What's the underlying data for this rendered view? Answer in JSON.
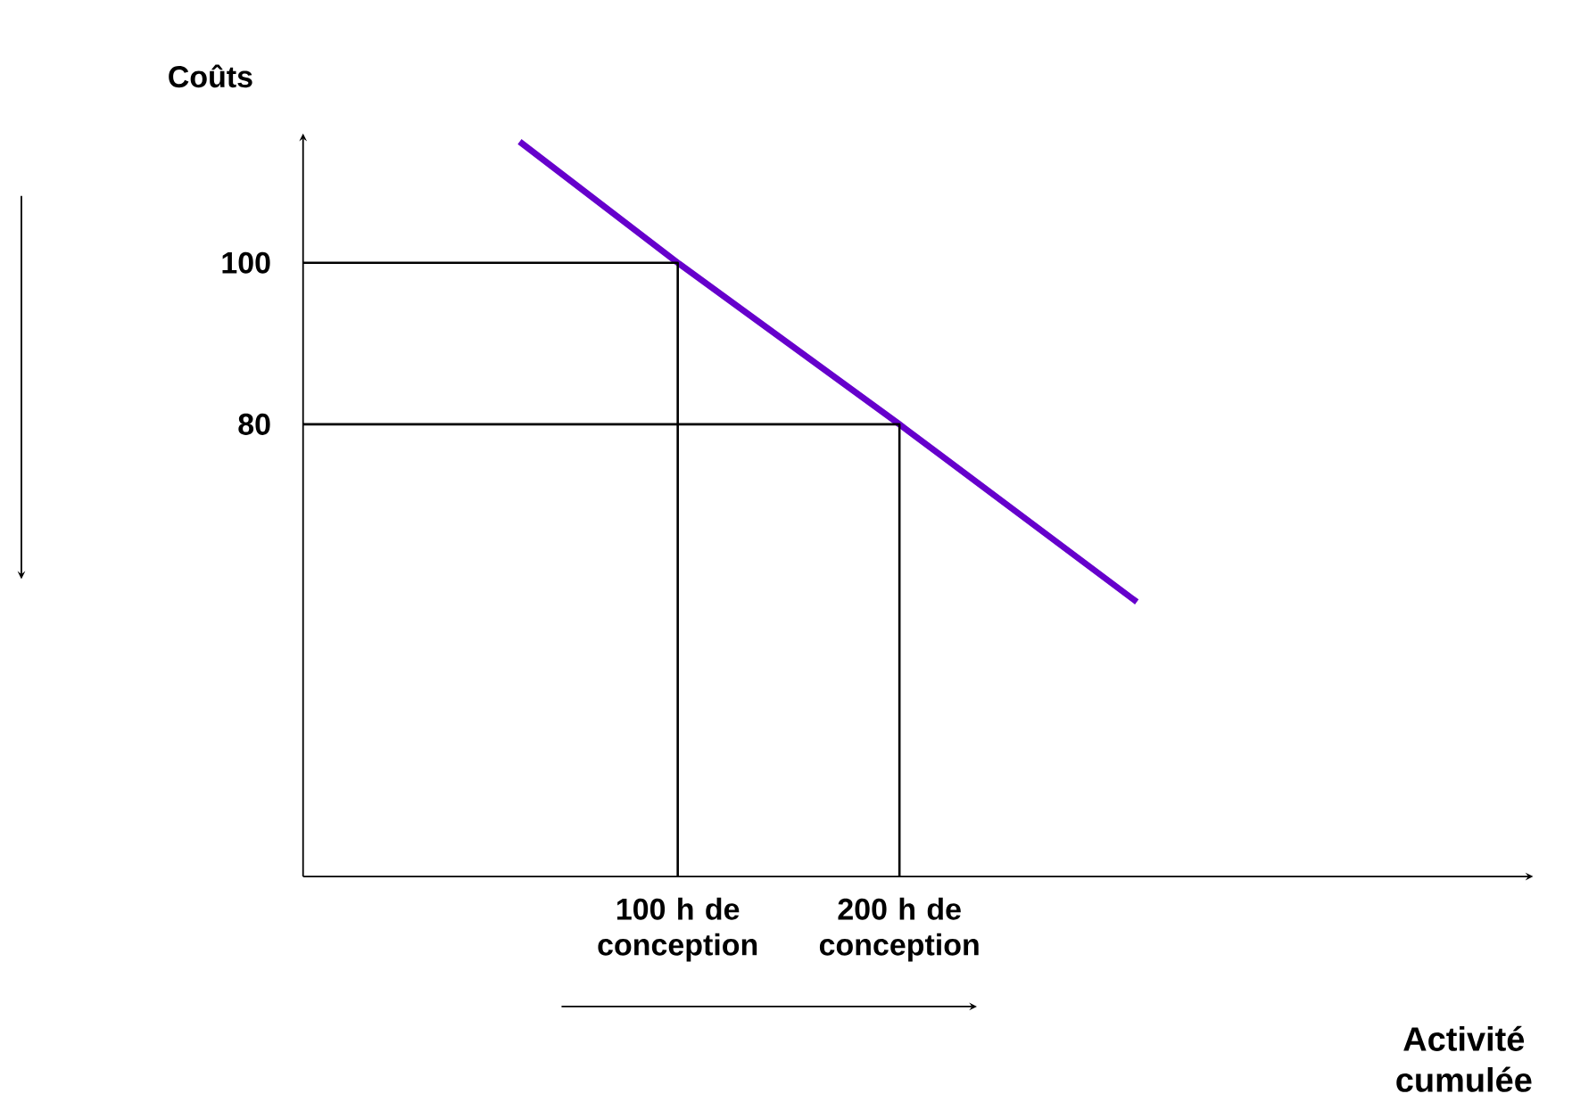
{
  "chart_data": {
    "type": "line",
    "xlabel": "Activité cumulée",
    "ylabel": "Coûts",
    "log": "x",
    "xlim": [
      31,
      1450
    ],
    "ylim": [
      24,
      116
    ],
    "xticks": [
      {
        "value": 100,
        "label": "100 h de conception"
      },
      {
        "value": 200,
        "label": "200 h de conception"
      }
    ],
    "yticks": [
      80,
      100
    ],
    "series": [
      {
        "color": "#6600cc",
        "x": [
          61,
          100,
          200,
          420
        ],
        "values": [
          115,
          100,
          80,
          58
        ]
      },
      {
        "color": "#000000",
        "x": [
          31,
          100,
          100
        ],
        "values": [
          100,
          100,
          24
        ]
      },
      {
        "color": "#000000",
        "x": [
          31,
          200,
          200
        ],
        "values": [
          80,
          80,
          24
        ]
      }
    ]
  }
}
